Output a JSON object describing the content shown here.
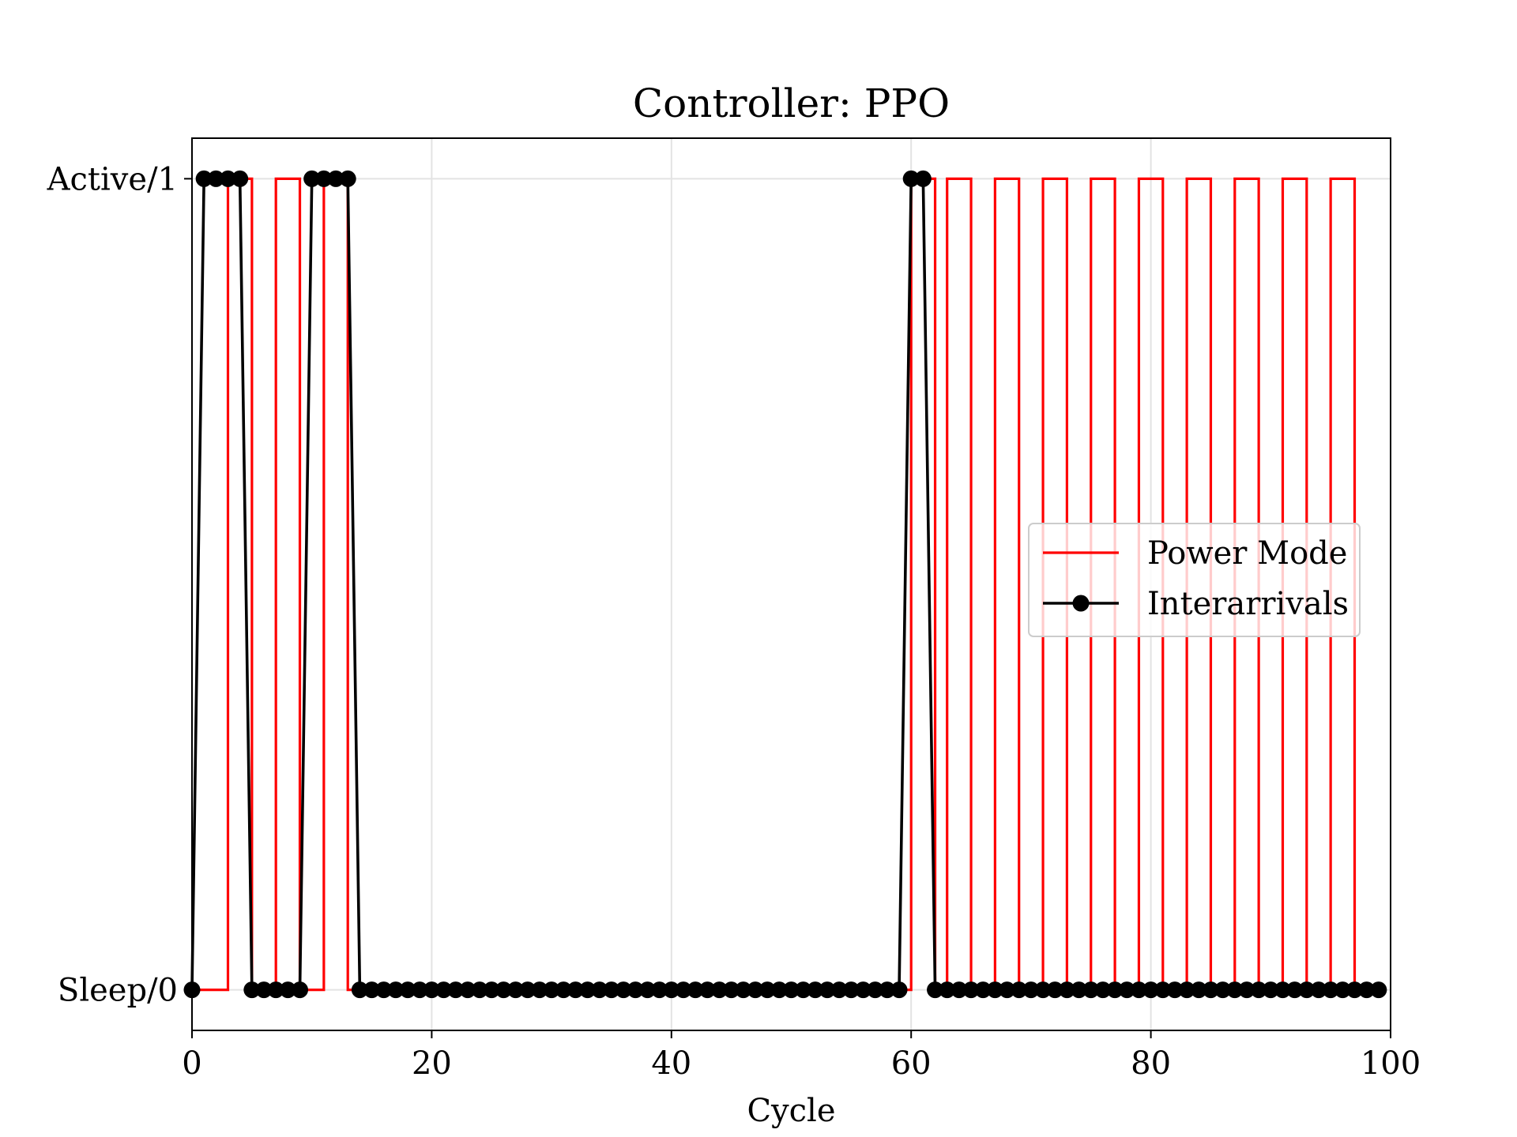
{
  "chart_data": {
    "type": "line",
    "title": "Controller: PPO",
    "xlabel": "Cycle",
    "ylabel": "",
    "xlim": [
      0,
      100
    ],
    "ylim": [
      -0.05,
      1.05
    ],
    "x_ticks": [
      0,
      20,
      40,
      60,
      80,
      100
    ],
    "x_tick_labels": [
      "0",
      "20",
      "40",
      "60",
      "80",
      "100"
    ],
    "y_ticks": [
      0,
      1
    ],
    "y_tick_labels": [
      "Sleep/0",
      "Active/1"
    ],
    "grid": true,
    "legend_position": "center-right",
    "series": [
      {
        "name": "Power Mode",
        "style": "step-post",
        "color": "#ff0000",
        "x": [
          0,
          1,
          2,
          3,
          4,
          5,
          6,
          7,
          8,
          9,
          10,
          11,
          12,
          13,
          14,
          15,
          16,
          17,
          18,
          19,
          20,
          21,
          22,
          23,
          24,
          25,
          26,
          27,
          28,
          29,
          30,
          31,
          32,
          33,
          34,
          35,
          36,
          37,
          38,
          39,
          40,
          41,
          42,
          43,
          44,
          45,
          46,
          47,
          48,
          49,
          50,
          51,
          52,
          53,
          54,
          55,
          56,
          57,
          58,
          59,
          60,
          61,
          62,
          63,
          64,
          65,
          66,
          67,
          68,
          69,
          70,
          71,
          72,
          73,
          74,
          75,
          76,
          77,
          78,
          79,
          80,
          81,
          82,
          83,
          84,
          85,
          86,
          87,
          88,
          89,
          90,
          91,
          92,
          93,
          94,
          95,
          96,
          97,
          98,
          99
        ],
        "values": [
          0,
          0,
          0,
          1,
          1,
          0,
          0,
          1,
          1,
          0,
          0,
          1,
          1,
          0,
          0,
          0,
          0,
          0,
          0,
          0,
          0,
          0,
          0,
          0,
          0,
          0,
          0,
          0,
          0,
          0,
          0,
          0,
          0,
          0,
          0,
          0,
          0,
          0,
          0,
          0,
          0,
          0,
          0,
          0,
          0,
          0,
          0,
          0,
          0,
          0,
          0,
          0,
          0,
          0,
          0,
          0,
          0,
          0,
          0,
          0,
          1,
          1,
          0,
          1,
          1,
          0,
          0,
          1,
          1,
          0,
          0,
          1,
          1,
          0,
          0,
          1,
          1,
          0,
          0,
          1,
          1,
          0,
          0,
          1,
          1,
          0,
          0,
          1,
          1,
          0,
          0,
          1,
          1,
          0,
          0,
          1,
          1,
          0,
          0,
          0
        ]
      },
      {
        "name": "Interarrivals",
        "style": "line-marker",
        "color": "#000000",
        "x": [
          0,
          1,
          2,
          3,
          4,
          5,
          6,
          7,
          8,
          9,
          10,
          11,
          12,
          13,
          14,
          15,
          16,
          17,
          18,
          19,
          20,
          21,
          22,
          23,
          24,
          25,
          26,
          27,
          28,
          29,
          30,
          31,
          32,
          33,
          34,
          35,
          36,
          37,
          38,
          39,
          40,
          41,
          42,
          43,
          44,
          45,
          46,
          47,
          48,
          49,
          50,
          51,
          52,
          53,
          54,
          55,
          56,
          57,
          58,
          59,
          60,
          61,
          62,
          63,
          64,
          65,
          66,
          67,
          68,
          69,
          70,
          71,
          72,
          73,
          74,
          75,
          76,
          77,
          78,
          79,
          80,
          81,
          82,
          83,
          84,
          85,
          86,
          87,
          88,
          89,
          90,
          91,
          92,
          93,
          94,
          95,
          96,
          97,
          98,
          99
        ],
        "values": [
          0,
          1,
          1,
          1,
          1,
          0,
          0,
          0,
          0,
          0,
          1,
          1,
          1,
          1,
          0,
          0,
          0,
          0,
          0,
          0,
          0,
          0,
          0,
          0,
          0,
          0,
          0,
          0,
          0,
          0,
          0,
          0,
          0,
          0,
          0,
          0,
          0,
          0,
          0,
          0,
          0,
          0,
          0,
          0,
          0,
          0,
          0,
          0,
          0,
          0,
          0,
          0,
          0,
          0,
          0,
          0,
          0,
          0,
          0,
          0,
          1,
          1,
          0,
          0,
          0,
          0,
          0,
          0,
          0,
          0,
          0,
          0,
          0,
          0,
          0,
          0,
          0,
          0,
          0,
          0,
          0,
          0,
          0,
          0,
          0,
          0,
          0,
          0,
          0,
          0,
          0,
          0,
          0,
          0,
          0,
          0,
          0,
          0,
          0,
          0
        ]
      }
    ]
  }
}
